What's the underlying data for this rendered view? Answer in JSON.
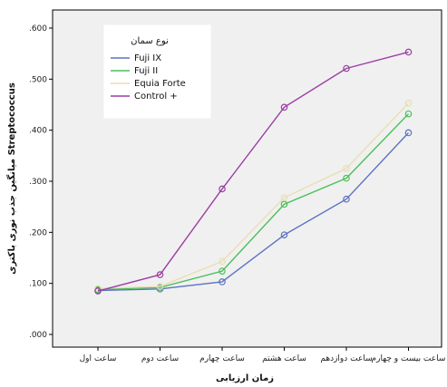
{
  "chart_data": {
    "type": "line",
    "xlabel": "زمان ارزیابی",
    "ylabel": "میانگین جذب نوری باکتری Streptococcus",
    "ylim": [
      0,
      0.6
    ],
    "yticks": [
      ".000",
      ".100",
      ".200",
      ".300",
      ".400",
      ".500",
      ".600"
    ],
    "categories": [
      "ساعت اول",
      "ساعت دوم",
      "ساعت چهارم",
      "ساعت هشتم",
      "ساعت دوازدهم",
      "ساعت بیست و چهارم"
    ],
    "grid": false,
    "legend": {
      "title": "نوع سمان",
      "position": "top-left"
    },
    "series": [
      {
        "name": "Fuji IX",
        "color": "#5b73c2",
        "values": [
          0.086,
          0.089,
          0.103,
          0.195,
          0.265,
          0.395
        ]
      },
      {
        "name": "Fuji II",
        "color": "#4cbf5a",
        "values": [
          0.088,
          0.092,
          0.124,
          0.255,
          0.306,
          0.432
        ]
      },
      {
        "name": "Equia Forte",
        "color": "#e8dfb4",
        "values": [
          0.09,
          0.094,
          0.143,
          0.268,
          0.325,
          0.453
        ]
      },
      {
        "name": "Control +",
        "color": "#9b3fa3",
        "values": [
          0.085,
          0.117,
          0.285,
          0.445,
          0.521,
          0.553
        ]
      }
    ]
  }
}
